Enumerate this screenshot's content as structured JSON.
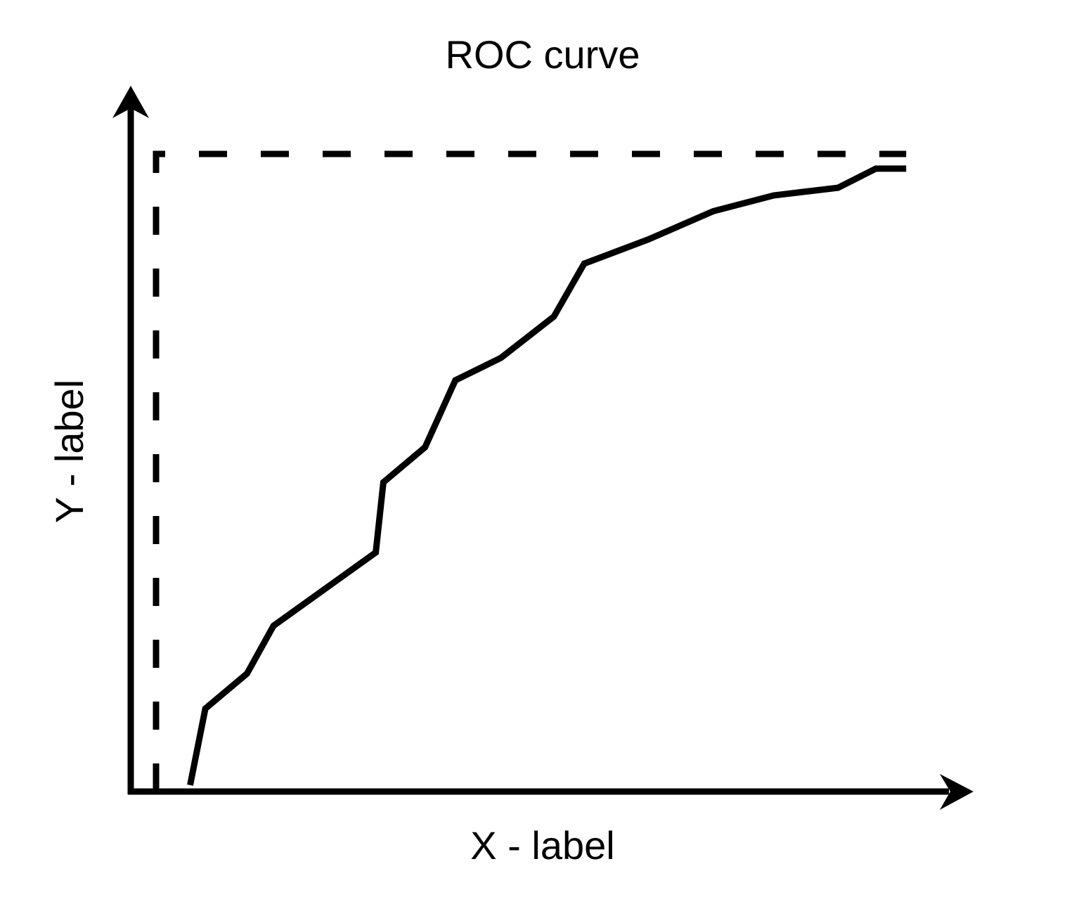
{
  "chart_data": {
    "type": "line",
    "title": "ROC curve",
    "xlabel": "X - label",
    "ylabel": "Y - label",
    "xlim": [
      0,
      1
    ],
    "ylim": [
      0,
      1
    ],
    "grid": false,
    "series": [
      {
        "style": "solid",
        "color": "#000000",
        "x": [
          0.045,
          0.065,
          0.12,
          0.155,
          0.29,
          0.3,
          0.355,
          0.395,
          0.455,
          0.525,
          0.565,
          0.65,
          0.735,
          0.815,
          0.9,
          0.95,
          0.99
        ],
        "y": [
          0.01,
          0.13,
          0.185,
          0.26,
          0.375,
          0.485,
          0.54,
          0.645,
          0.68,
          0.745,
          0.828,
          0.866,
          0.91,
          0.935,
          0.947,
          0.977,
          0.977
        ]
      },
      {
        "style": "dashed",
        "color": "#000000",
        "x": [
          0.0,
          0.0,
          0.99
        ],
        "y": [
          0.0,
          1.0,
          1.0
        ]
      }
    ]
  }
}
